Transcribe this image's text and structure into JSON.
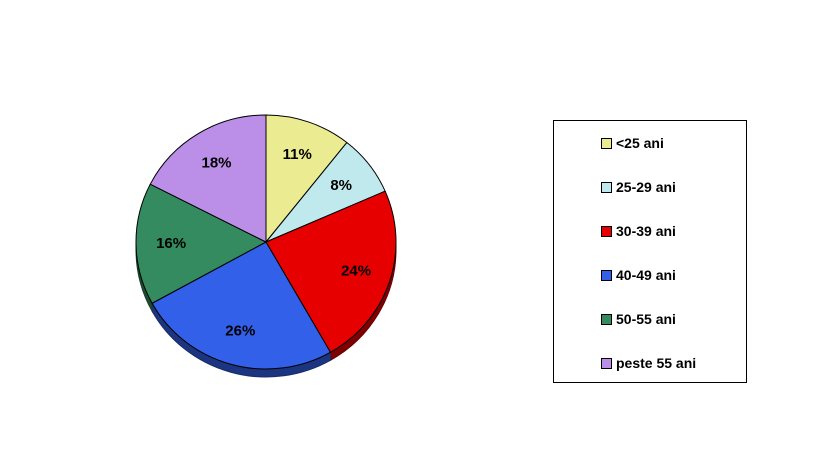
{
  "chart_data": {
    "type": "pie",
    "title": "",
    "categories": [
      "<25 ani",
      "25-29 ani",
      "30-39 ani",
      "40-49 ani",
      "50-55 ani",
      "peste 55 ani"
    ],
    "values": [
      11,
      8,
      24,
      26,
      16,
      18
    ],
    "data_labels": [
      "11%",
      "8%",
      "24%",
      "26%",
      "16%",
      "18%"
    ],
    "colors": [
      "#ebeb91",
      "#bfe9ec",
      "#e60000",
      "#3360e8",
      "#338b5f",
      "#bb8ee8"
    ],
    "legend_position": "right",
    "style": "3d-tilted"
  }
}
